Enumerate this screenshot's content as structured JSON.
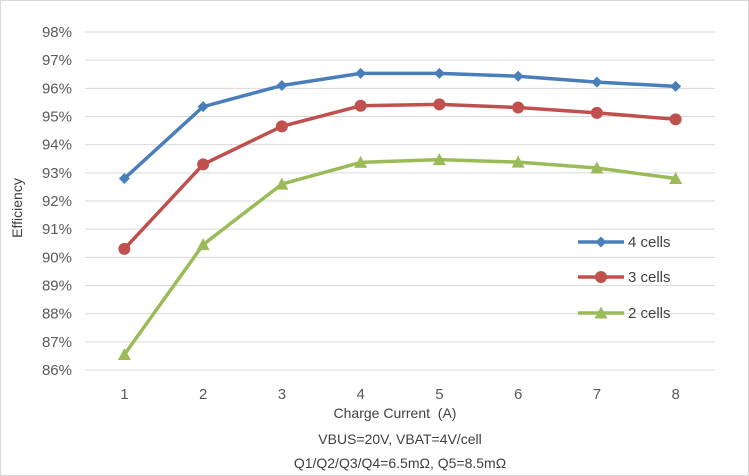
{
  "chart_data": {
    "type": "line",
    "x": [
      1,
      2,
      3,
      4,
      5,
      6,
      7,
      8
    ],
    "x_tick_labels": [
      "1",
      "2",
      "3",
      "4",
      "5",
      "6",
      "7",
      "8"
    ],
    "series": [
      {
        "name": "4 cells",
        "color": "#4a7ebb",
        "marker": "diamond",
        "values": [
          92.8,
          95.35,
          96.1,
          96.53,
          96.53,
          96.43,
          96.22,
          96.07
        ]
      },
      {
        "name": "3 cells",
        "color": "#c0504d",
        "marker": "circle",
        "values": [
          90.3,
          93.3,
          94.65,
          95.38,
          95.43,
          95.32,
          95.13,
          94.9
        ]
      },
      {
        "name": "2 cells",
        "color": "#9bbb59",
        "marker": "triangle",
        "values": [
          86.55,
          90.45,
          92.6,
          93.37,
          93.47,
          93.38,
          93.17,
          92.8
        ]
      }
    ],
    "ylim": [
      86,
      98
    ],
    "y_tick_labels": [
      "86%",
      "87%",
      "88%",
      "89%",
      "90%",
      "91%",
      "92%",
      "93%",
      "94%",
      "95%",
      "96%",
      "97%",
      "98%"
    ],
    "xlabel": "Charge Current  (A)",
    "ylabel": "Efficiency",
    "annotations": [
      "VBUS=20V, VBAT=4V/cell",
      "Q1/Q2/Q3/Q4=6.5mΩ, Q5=8.5mΩ"
    ],
    "grid": true,
    "legend_position": "right"
  }
}
